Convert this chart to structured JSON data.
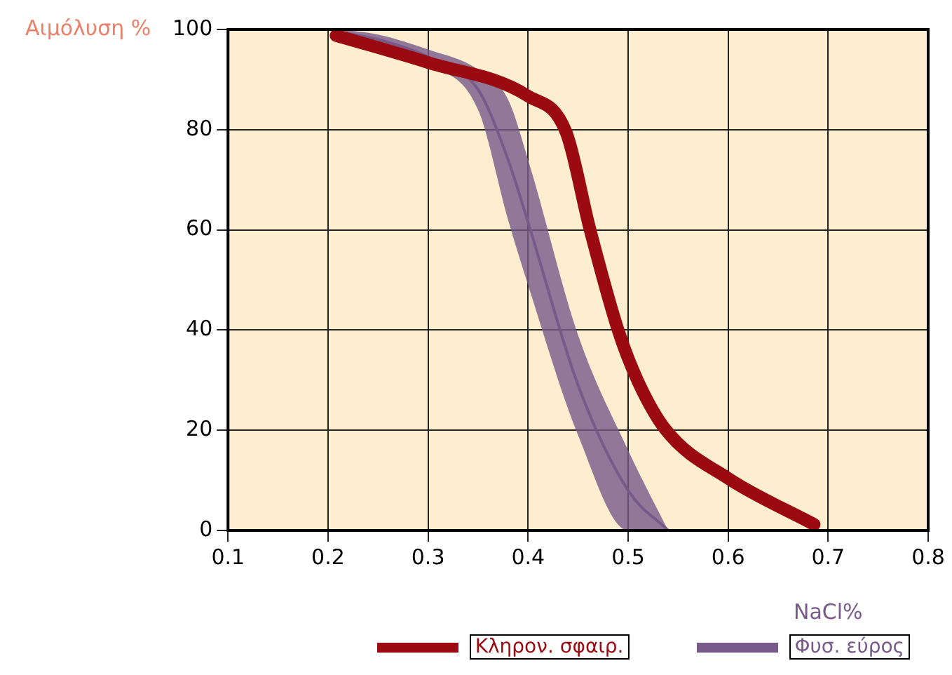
{
  "chart_data": {
    "type": "line",
    "ylabel": "Αιμόλυση %",
    "xlabel": "NaCl%",
    "xlim": [
      0.1,
      0.8
    ],
    "xticks": [
      0.1,
      0.2,
      0.3,
      0.4,
      0.5,
      0.6,
      0.7,
      0.8
    ],
    "ylim": [
      0,
      100
    ],
    "yticks": [
      0,
      20,
      40,
      60,
      80,
      100
    ],
    "grid": true,
    "legend": "bottom",
    "marker": "none",
    "line_style": "solid",
    "series": [
      {
        "name": "Κληρον. σφαιρ.",
        "color": "#9b0a10",
        "x": [
          0.208,
          0.3,
          0.4,
          0.438,
          0.462,
          0.49,
          0.51,
          0.538,
          0.6,
          0.686
        ],
        "values": [
          98.8,
          93.4,
          86.7,
          79.5,
          60,
          40,
          29.7,
          20,
          10.4,
          1.2
        ]
      },
      {
        "name": "Φυσ. εύρος",
        "color": "#775a8a",
        "x": [
          0.21,
          0.25,
          0.3,
          0.35,
          0.38,
          0.4,
          0.45,
          0.5,
          0.54
        ],
        "values": [
          99.5,
          98,
          94.5,
          88,
          74,
          61.5,
          29,
          8,
          0
        ],
        "lower": [
          99,
          97,
          93,
          84,
          62,
          49,
          19,
          0,
          0
        ],
        "upper": [
          100,
          99,
          96,
          92,
          86,
          74,
          39,
          16,
          0
        ]
      }
    ]
  }
}
